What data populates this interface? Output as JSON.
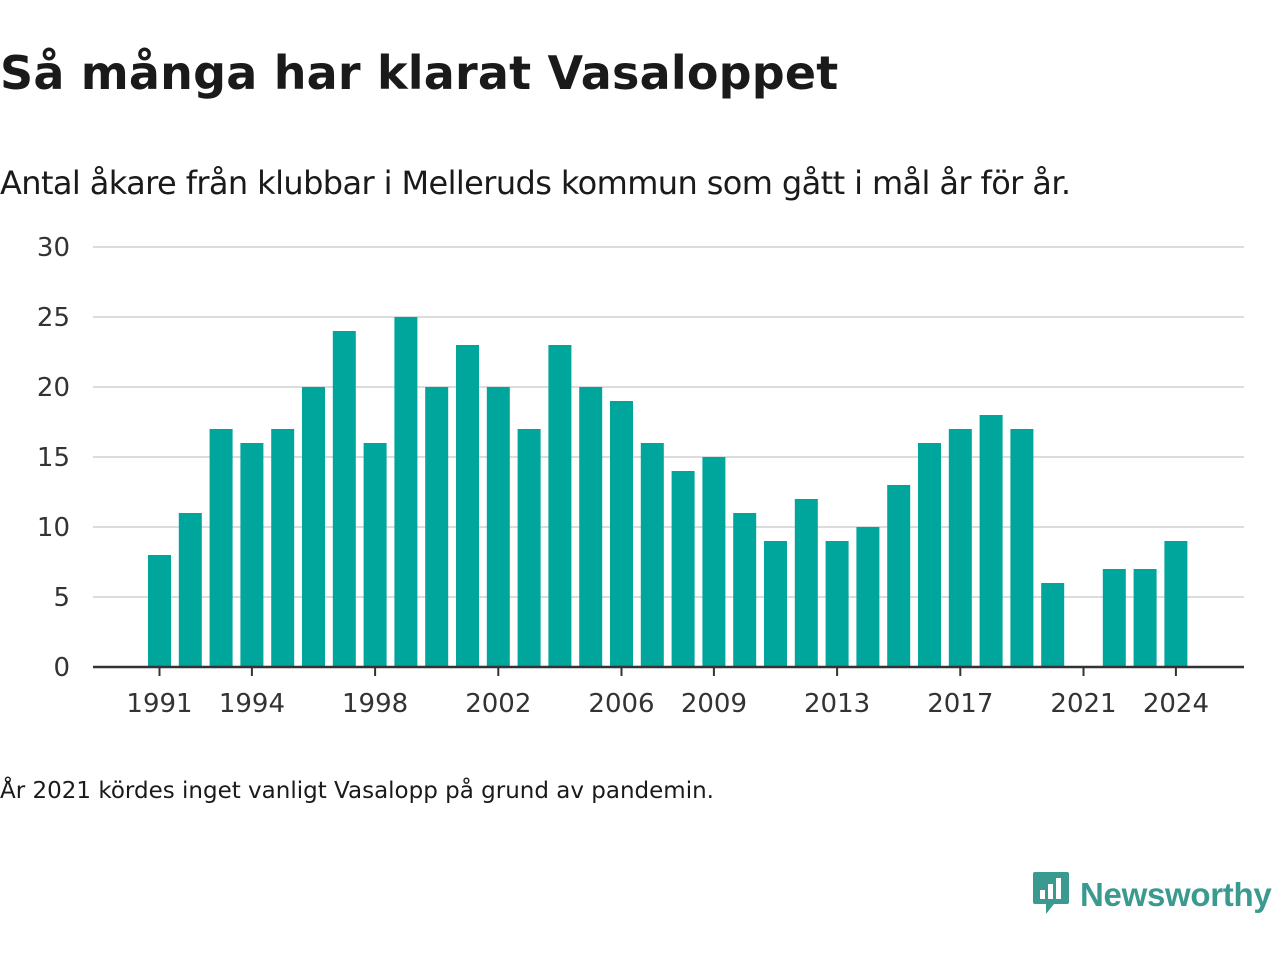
{
  "title": "Så många har klarat Vasaloppet",
  "subtitle": "Antal åkare från klubbar i Melleruds kommun som gått i mål år för år.",
  "note": "År 2021 kördes inget vanligt Vasalopp på grund av pandemin.",
  "brand": {
    "name": "Newsworthy",
    "color": "#3b9a8f",
    "icon": "newsworthy-chat-chart-icon"
  },
  "chart_data": {
    "type": "bar",
    "color": "#00a69c",
    "x": [
      1991,
      1992,
      1993,
      1994,
      1995,
      1996,
      1997,
      1998,
      1999,
      2000,
      2001,
      2002,
      2003,
      2004,
      2005,
      2006,
      2007,
      2008,
      2009,
      2010,
      2011,
      2012,
      2013,
      2014,
      2015,
      2016,
      2017,
      2018,
      2019,
      2020,
      2021,
      2022,
      2023,
      2024
    ],
    "values": [
      8,
      11,
      17,
      16,
      17,
      20,
      24,
      16,
      25,
      20,
      23,
      20,
      17,
      23,
      20,
      19,
      16,
      14,
      15,
      11,
      9,
      12,
      9,
      10,
      13,
      16,
      17,
      18,
      17,
      6,
      0,
      7,
      7,
      9
    ],
    "x_ticks": [
      1991,
      1994,
      1998,
      2002,
      2006,
      2009,
      2013,
      2017,
      2021,
      2024
    ],
    "y_ticks": [
      0,
      5,
      10,
      15,
      20,
      25,
      30
    ],
    "ylim": [
      0,
      30
    ],
    "grid": true
  }
}
